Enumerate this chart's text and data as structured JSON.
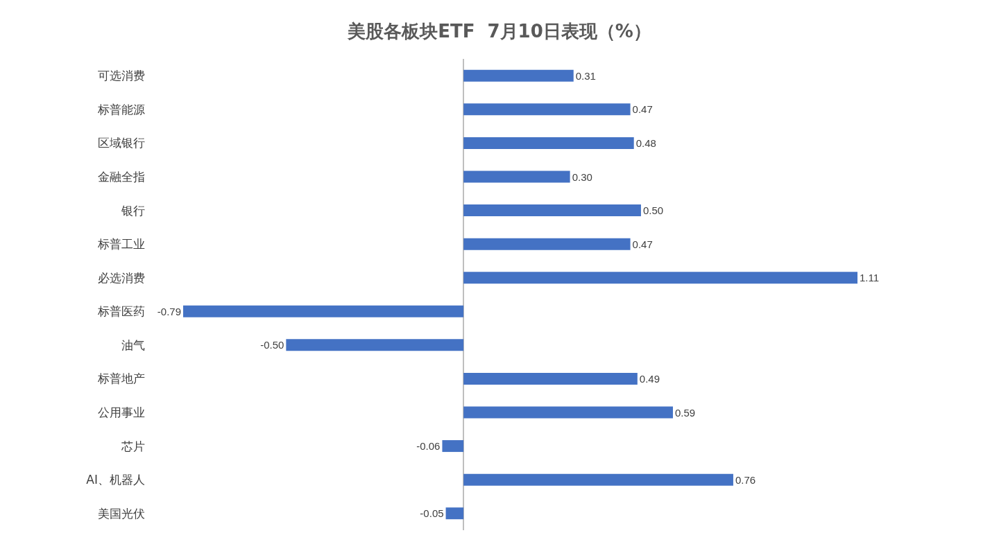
{
  "chart_data": {
    "type": "bar",
    "orientation": "horizontal",
    "title": "美股各板块ETF  7月10日表现（%）",
    "categories": [
      "可选消费",
      "标普能源",
      "区域银行",
      "金融全指",
      "银行",
      "标普工业",
      "必选消费",
      "标普医药",
      "油气",
      "标普地产",
      "公用事业",
      "芯片",
      "AI、机器人",
      "美国光伏"
    ],
    "values": [
      0.31,
      0.47,
      0.48,
      0.3,
      0.5,
      0.47,
      1.11,
      -0.79,
      -0.5,
      0.49,
      0.59,
      -0.06,
      0.76,
      -0.05
    ],
    "value_labels": [
      "0.31",
      "0.47",
      "0.48",
      "0.30",
      "0.50",
      "0.47",
      "1.11",
      "-0.79",
      "-0.50",
      "0.49",
      "0.59",
      "-0.06",
      "0.76",
      "-0.05"
    ],
    "color": "#4472c4",
    "grid": false,
    "legend": false
  }
}
